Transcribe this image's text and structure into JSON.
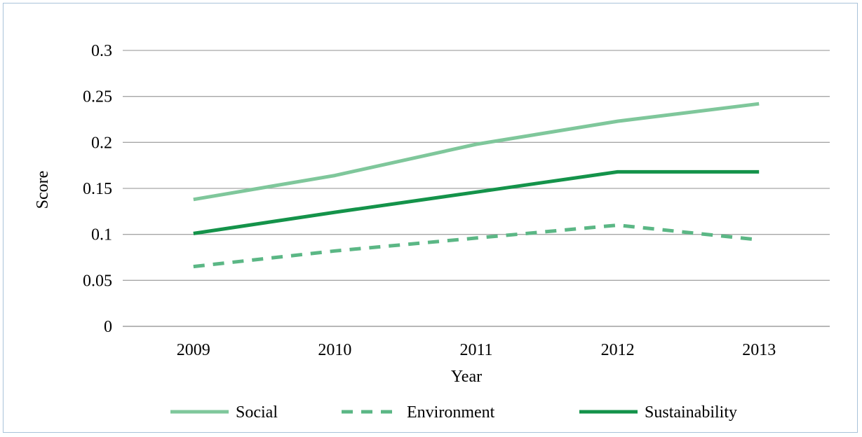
{
  "chart_data": {
    "type": "line",
    "title": "",
    "xlabel": "Year",
    "ylabel": "Score",
    "categories": [
      "2009",
      "2010",
      "2011",
      "2012",
      "2013"
    ],
    "y_ticks": [
      "0",
      "0.05",
      "0.1",
      "0.15",
      "0.2",
      "0.25",
      "0.3"
    ],
    "ylim": [
      0,
      0.3
    ],
    "grid": true,
    "legend_position": "bottom",
    "series": [
      {
        "name": "Social",
        "values": [
          0.138,
          0.164,
          0.198,
          0.223,
          0.242
        ],
        "color": "#7fc79b",
        "style": "solid"
      },
      {
        "name": "Environment",
        "values": [
          0.065,
          0.082,
          0.096,
          0.11,
          0.094
        ],
        "color": "#5bb785",
        "style": "dashed"
      },
      {
        "name": "Sustainability",
        "values": [
          0.101,
          0.124,
          0.146,
          0.168,
          0.168
        ],
        "color": "#14934a",
        "style": "solid"
      }
    ]
  }
}
